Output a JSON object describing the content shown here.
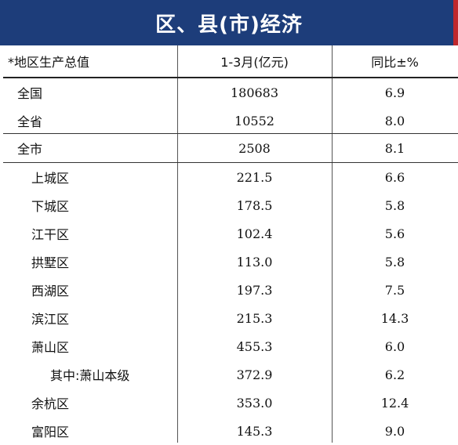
{
  "title": "区、县(市)经济",
  "headers": [
    "*地区生产总值",
    "1-3月(亿元)",
    "同比±%"
  ],
  "rows": [
    {
      "name": "全国",
      "value": "180683",
      "change": "6.9",
      "indent": 1
    },
    {
      "name": "全省",
      "value": "10552",
      "change": "8.0",
      "indent": 1
    },
    {
      "name": "全市",
      "value": "2508",
      "change": "8.1",
      "indent": 1
    },
    {
      "name": "上城区",
      "value": "221.5",
      "change": "6.6",
      "indent": 2
    },
    {
      "name": "下城区",
      "value": "178.5",
      "change": "5.8",
      "indent": 2
    },
    {
      "name": "江干区",
      "value": "102.4",
      "change": "5.6",
      "indent": 2
    },
    {
      "name": "拱墅区",
      "value": "113.0",
      "change": "5.8",
      "indent": 2
    },
    {
      "name": "西湖区",
      "value": "197.3",
      "change": "7.5",
      "indent": 2
    },
    {
      "name": "滨江区",
      "value": "215.3",
      "change": "14.3",
      "indent": 2
    },
    {
      "name": "萧山区",
      "value": "455.3",
      "change": "6.0",
      "indent": 2
    },
    {
      "name": "其中:萧山本级",
      "value": "372.9",
      "change": "6.2",
      "indent": 3
    },
    {
      "name": "余杭区",
      "value": "353.0",
      "change": "12.4",
      "indent": 2
    },
    {
      "name": "富阳区",
      "value": "145.3",
      "change": "9.0",
      "indent": 2
    }
  ]
}
